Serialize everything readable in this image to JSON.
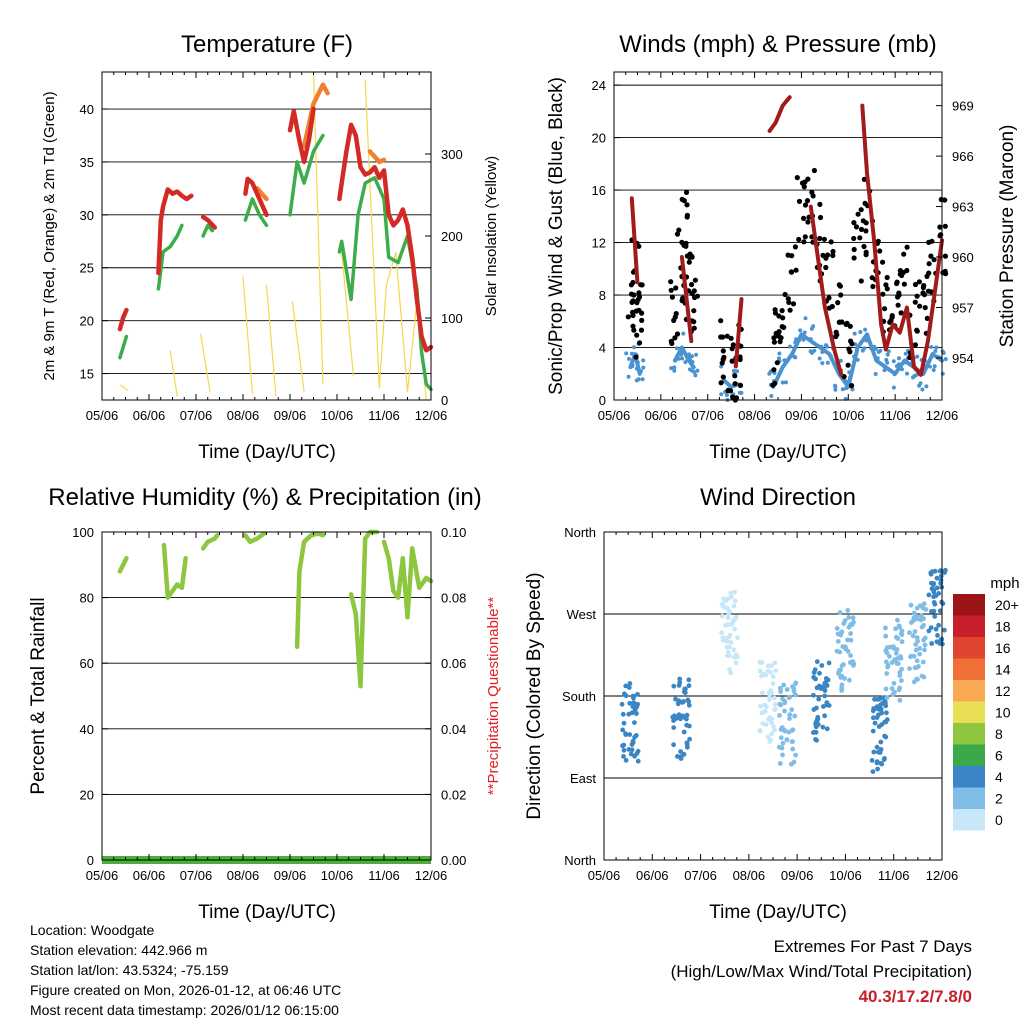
{
  "footer": {
    "location": "Location: Woodgate",
    "elevation": "Station elevation: 442.966 m",
    "latlon": "Station lat/lon: 43.5324; -75.159",
    "created": "Figure created on Mon, 2026-01-12, at 06:46 UTC",
    "recent": "Most recent data timestamp: 2026/01/12 06:15:00"
  },
  "extremes": {
    "title": "Extremes For Past 7 Days",
    "subtitle": "(High/Low/Max Wind/Total Precipitation)",
    "value": "40.3/17.2/7.8/0"
  },
  "colors": {
    "temp2m": "#d42a25",
    "temp9m": "#f08030",
    "dewpoint": "#3cad4a",
    "solar": "#f5d84a",
    "gust": "#000000",
    "sonic": "#4b93d0",
    "pressure": "#a01c1c",
    "rh": "#8dc63f",
    "precip": "#4caf3c",
    "questionable": "#e02020"
  },
  "chart_data": [
    {
      "id": "temp",
      "type": "line",
      "title": "Temperature (F)",
      "xlabel": "Time (Day/UTC)",
      "ylabel": "2m & 9m T (Red, Orange) & 2m Td (Green)",
      "y2label": "Solar Insolation (Yellow)",
      "xticks": [
        "05/06",
        "06/06",
        "07/06",
        "08/06",
        "09/06",
        "10/06",
        "11/06",
        "12/06"
      ],
      "xlim": [
        5,
        12
      ],
      "ylim": [
        12.5,
        43.5
      ],
      "yticks": [
        15,
        20,
        25,
        30,
        35,
        40
      ],
      "y2lim": [
        0,
        400
      ],
      "y2ticks": [
        0,
        100,
        200,
        300
      ],
      "series": [
        {
          "name": "2m T",
          "color": "#d42a25",
          "x": [
            5.38,
            5.45,
            5.52,
            6.2,
            6.25,
            6.3,
            6.4,
            6.5,
            6.6,
            6.7,
            6.8,
            6.9,
            7.15,
            7.25,
            7.4,
            8.05,
            8.1,
            8.2,
            8.3,
            8.4,
            8.5,
            9.0,
            9.08,
            9.2,
            9.3,
            9.4,
            9.5,
            10.05,
            10.1,
            10.2,
            10.3,
            10.4,
            10.5,
            10.6,
            10.7,
            10.8,
            10.9,
            11.0,
            11.1,
            11.2,
            11.3,
            11.4,
            11.5,
            11.6,
            11.7,
            11.8,
            11.9,
            12.0
          ],
          "y": [
            19.2,
            20.3,
            21.0,
            24.5,
            29.5,
            30.8,
            32.4,
            32.0,
            32.2,
            31.8,
            31.5,
            31.8,
            29.8,
            29.5,
            28.8,
            32.0,
            33.4,
            33.0,
            32.0,
            31.0,
            30.0,
            38.0,
            39.8,
            37.0,
            35.0,
            37.0,
            40.0,
            31.5,
            33.0,
            36.0,
            38.5,
            37.5,
            34.5,
            33.8,
            34.0,
            34.5,
            33.5,
            34.2,
            30.0,
            29.0,
            29.5,
            30.5,
            29.0,
            26.0,
            22.0,
            18.5,
            17.2,
            17.5
          ],
          "breaks": [
            3,
            12,
            15,
            21,
            27
          ]
        },
        {
          "name": "9m T",
          "color": "#f08030",
          "x": [
            8.3,
            8.5,
            9.3,
            9.5,
            9.7,
            9.8,
            10.7,
            10.9,
            11.0
          ],
          "y": [
            32.5,
            31.5,
            36.5,
            40.5,
            42.3,
            41.5,
            36.0,
            35.0,
            35.2
          ],
          "breaks": [
            2,
            6
          ]
        },
        {
          "name": "2m Td",
          "color": "#3cad4a",
          "x": [
            5.38,
            5.45,
            5.52,
            6.2,
            6.3,
            6.45,
            6.6,
            6.7,
            7.15,
            7.25,
            7.35,
            8.05,
            8.2,
            8.35,
            8.5,
            9.0,
            9.15,
            9.3,
            9.5,
            9.7,
            10.05,
            10.1,
            10.3,
            10.45,
            10.6,
            10.8,
            11.0,
            11.1,
            11.3,
            11.5,
            11.7,
            11.8,
            11.9,
            12.0
          ],
          "y": [
            16.5,
            17.5,
            18.5,
            23.0,
            26.5,
            27.0,
            28.0,
            29.0,
            28.0,
            29.0,
            28.5,
            29.5,
            31.5,
            30.0,
            29.0,
            30.0,
            35.0,
            33.0,
            36.0,
            37.5,
            26.5,
            27.5,
            22.0,
            30.0,
            33.0,
            33.5,
            31.5,
            26.0,
            25.5,
            28.0,
            23.0,
            17.0,
            14.0,
            13.5
          ],
          "breaks": [
            3,
            8,
            11,
            15,
            20
          ]
        },
        {
          "name": "Solar",
          "color": "#f5d84a",
          "axis": "y2",
          "x": [
            5.4,
            5.55,
            6.45,
            6.6,
            7.1,
            7.3,
            8.0,
            8.2,
            8.5,
            8.7,
            9.05,
            9.3,
            9.5,
            9.7,
            10.1,
            10.35,
            10.6,
            10.9,
            11.05,
            11.25,
            11.5,
            11.7,
            11.9
          ],
          "y": [
            18,
            12,
            60,
            5,
            80,
            10,
            150,
            8,
            140,
            5,
            120,
            10,
            400,
            20,
            180,
            30,
            390,
            15,
            140,
            180,
            10,
            120,
            0
          ],
          "breaks": [
            2,
            4,
            6,
            8,
            10,
            12,
            14,
            16
          ]
        }
      ]
    },
    {
      "id": "wind",
      "type": "scatter",
      "title": "Winds (mph) & Pressure (mb)",
      "xlabel": "Time (Day/UTC)",
      "ylabel": "Sonic/Prop Wind & Gust (Blue, Black)",
      "y2label": "Station Pressure (Maroon)",
      "xticks": [
        "05/06",
        "06/06",
        "07/06",
        "08/06",
        "09/06",
        "10/06",
        "11/06",
        "12/06"
      ],
      "xlim": [
        5,
        12
      ],
      "ylim": [
        0,
        25
      ],
      "yticks": [
        0,
        4,
        8,
        12,
        16,
        20,
        24
      ],
      "y2lim": [
        951.5,
        971
      ],
      "y2ticks": [
        954,
        957,
        960,
        963,
        966,
        969
      ],
      "series": [
        {
          "name": "Gust",
          "color": "#000000",
          "x": [
            5.35,
            5.45,
            5.55,
            6.3,
            6.4,
            6.5,
            6.6,
            6.7,
            7.35,
            7.5,
            7.65,
            8.4,
            8.6,
            8.8,
            9.0,
            9.2,
            9.4,
            9.6,
            9.8,
            10.0,
            10.2,
            10.4,
            10.6,
            10.8,
            11.0,
            11.2,
            11.4,
            11.6,
            11.8,
            12.0
          ],
          "y": [
            8.0,
            9.5,
            6.0,
            7.0,
            10.5,
            13.0,
            9.0,
            7.5,
            4.0,
            2.5,
            3.0,
            4.0,
            6.0,
            9.0,
            15.0,
            14.5,
            12.0,
            10.0,
            6.5,
            3.0,
            12.0,
            14.0,
            11.0,
            8.0,
            7.0,
            9.5,
            6.0,
            8.0,
            10.0,
            12.5
          ],
          "breaks": [
            3,
            8,
            11
          ]
        },
        {
          "name": "Sonic",
          "color": "#4b93d0",
          "x": [
            5.35,
            5.45,
            5.55,
            6.3,
            6.45,
            6.6,
            6.7,
            7.35,
            7.5,
            7.65,
            8.4,
            8.6,
            8.8,
            9.0,
            9.2,
            9.4,
            9.6,
            9.8,
            10.0,
            10.2,
            10.4,
            10.6,
            10.8,
            11.0,
            11.2,
            11.4,
            11.6,
            11.8,
            12.0
          ],
          "y": [
            2.5,
            3.5,
            2.0,
            3.0,
            4.0,
            3.0,
            2.5,
            1.5,
            1.0,
            1.2,
            1.0,
            2.5,
            3.5,
            5.0,
            4.5,
            4.0,
            3.5,
            2.0,
            1.0,
            4.0,
            5.0,
            3.0,
            2.5,
            2.0,
            3.0,
            2.5,
            2.0,
            3.5,
            3.0
          ],
          "breaks": [
            3,
            7,
            10
          ]
        },
        {
          "name": "Pressure",
          "color": "#a01c1c",
          "axis": "y2",
          "x": [
            5.38,
            5.5,
            6.45,
            6.65,
            7.6,
            7.72,
            8.32,
            8.45,
            8.6,
            8.75,
            9.2,
            9.35,
            9.5,
            9.7,
            9.85,
            10.3,
            10.4,
            10.55,
            10.7,
            10.8,
            10.95,
            11.1,
            11.25,
            11.4,
            11.55,
            11.7,
            11.85,
            12.0
          ],
          "y": [
            963.5,
            958.5,
            960.0,
            955.0,
            953.5,
            957.5,
            967.5,
            968.0,
            969.0,
            969.5,
            963.0,
            960.0,
            957.0,
            954.5,
            953.0,
            969.0,
            965.0,
            961.0,
            956.0,
            954.5,
            956.0,
            955.5,
            957.0,
            953.5,
            953.0,
            955.0,
            958.0,
            961.0
          ],
          "breaks": [
            2,
            4,
            6,
            10,
            15
          ]
        }
      ]
    },
    {
      "id": "rh",
      "type": "line",
      "title": "Relative Humidity (%) & Precipitation (in)",
      "xlabel": "Time (Day/UTC)",
      "ylabel": "Percent & Total Rainfall",
      "y2label": "**Precipitation Questionable**",
      "xticks": [
        "05/06",
        "06/06",
        "07/06",
        "08/06",
        "09/06",
        "10/06",
        "11/06",
        "12/06"
      ],
      "xlim": [
        5,
        12
      ],
      "ylim": [
        0,
        100
      ],
      "yticks": [
        0,
        20,
        40,
        60,
        80,
        100
      ],
      "y2lim": [
        0,
        0.1
      ],
      "y2ticks": [
        "0.00",
        "0.02",
        "0.04",
        "0.06",
        "0.08",
        "0.10"
      ],
      "series": [
        {
          "name": "RH",
          "color": "#8dc63f",
          "x": [
            5.38,
            5.45,
            5.52,
            6.32,
            6.4,
            6.5,
            6.6,
            6.7,
            6.78,
            7.15,
            7.25,
            7.4,
            7.45,
            8.05,
            8.15,
            8.3,
            8.45,
            9.15,
            9.2,
            9.3,
            9.45,
            9.6,
            9.7,
            10.3,
            10.4,
            10.5,
            10.6,
            10.7,
            10.85,
            11.0,
            11.1,
            11.2,
            11.3,
            11.4,
            11.5,
            11.6,
            11.75,
            11.9,
            12.0
          ],
          "y": [
            88.0,
            90.0,
            92.0,
            96.0,
            80.0,
            82.0,
            84.0,
            83.0,
            92.0,
            95.0,
            97.0,
            98.0,
            99.0,
            99.0,
            97.0,
            98.0,
            99.5,
            65.0,
            88.0,
            97.0,
            99.0,
            99.5,
            99.0,
            81.0,
            75.0,
            53.0,
            98.0,
            100.0,
            100.0,
            97.0,
            92.0,
            82.0,
            80.0,
            92.0,
            74.0,
            95.0,
            83.0,
            86.0,
            85.0
          ],
          "breaks": [
            3,
            9,
            13,
            17,
            23,
            29
          ]
        },
        {
          "name": "Precip",
          "color": "#4caf3c",
          "axis": "y2",
          "x": [
            5.0,
            12.0
          ],
          "y": [
            0,
            0
          ]
        }
      ]
    },
    {
      "id": "dir",
      "type": "scatter",
      "title": "Wind Direction",
      "xlabel": "Time (Day/UTC)",
      "ylabel": "Direction (Colored By Speed)",
      "xticks": [
        "05/06",
        "06/06",
        "07/06",
        "08/06",
        "09/06",
        "10/06",
        "11/06",
        "12/06"
      ],
      "xlim": [
        5,
        12
      ],
      "ylim": [
        0,
        360
      ],
      "yticks": [
        "North",
        "East",
        "South",
        "West",
        "North"
      ],
      "legend_title": "mph",
      "legend_labels": [
        "20+",
        "18",
        "16",
        "14",
        "12",
        "10",
        "8",
        "6",
        "4",
        "2",
        "0"
      ],
      "legend_colors": [
        "#9b1518",
        "#c8202a",
        "#e04530",
        "#f06f35",
        "#f8a952",
        "#e9df55",
        "#8dc63f",
        "#3ca84c",
        "#3a86c5",
        "#7fbde6",
        "#c7e7f8"
      ],
      "clusters": [
        {
          "x": 5.55,
          "y": 150,
          "color": "#3a86c5"
        },
        {
          "x": 6.6,
          "y": 155,
          "color": "#3a86c5"
        },
        {
          "x": 7.6,
          "y": 250,
          "color": "#c7e7f8"
        },
        {
          "x": 8.4,
          "y": 175,
          "color": "#c7e7f8"
        },
        {
          "x": 8.8,
          "y": 150,
          "color": "#7fbde6"
        },
        {
          "x": 9.5,
          "y": 175,
          "color": "#3a86c5"
        },
        {
          "x": 10.0,
          "y": 230,
          "color": "#7fbde6"
        },
        {
          "x": 10.7,
          "y": 135,
          "color": "#3a86c5"
        },
        {
          "x": 11.0,
          "y": 220,
          "color": "#7fbde6"
        },
        {
          "x": 11.5,
          "y": 240,
          "color": "#7fbde6"
        },
        {
          "x": 11.9,
          "y": 280,
          "color": "#3a86c5"
        }
      ]
    }
  ]
}
